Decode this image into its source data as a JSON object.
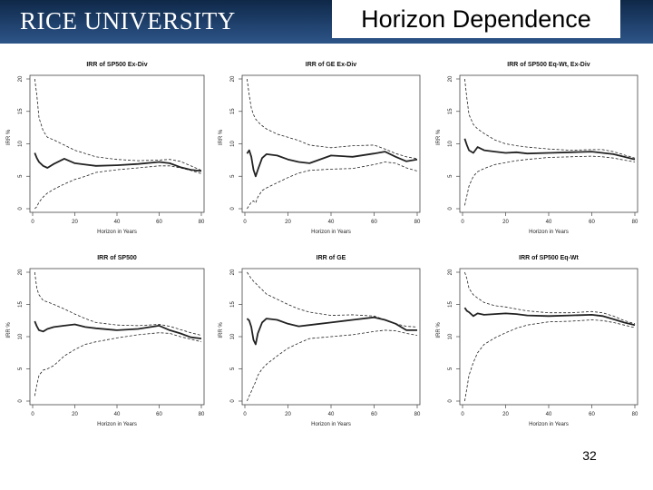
{
  "header": {
    "logo_text": "RICE UNIVERSITY",
    "title": "Horizon Dependence",
    "brand_color": "#1c3c66"
  },
  "footer": {
    "page_number": "32"
  },
  "chart_data": [
    {
      "type": "line",
      "title": "IRR of SP500 Ex-Div",
      "xlabel": "Horizon in Years",
      "ylabel": "IRR %",
      "xlim": [
        0,
        80
      ],
      "ylim": [
        0,
        20
      ],
      "xticks": [
        "0",
        "20",
        "40",
        "60",
        "80"
      ],
      "yticks": [
        "0",
        "5",
        "10",
        "15",
        "20"
      ],
      "x": [
        1,
        2,
        3,
        5,
        7,
        10,
        15,
        20,
        25,
        30,
        40,
        50,
        60,
        65,
        70,
        75,
        80
      ],
      "series": [
        {
          "name": "IRR",
          "style": "solid",
          "values": [
            8.6,
            7.8,
            7.2,
            6.6,
            6.3,
            6.9,
            7.7,
            7.0,
            6.8,
            6.6,
            6.7,
            6.9,
            7.2,
            7.0,
            6.4,
            6.0,
            5.8
          ]
        },
        {
          "name": "Upper bound",
          "style": "dashed",
          "values": [
            20,
            17.5,
            14,
            12,
            11,
            10.6,
            9.8,
            9.0,
            8.5,
            8.0,
            7.6,
            7.4,
            7.5,
            7.6,
            7.3,
            6.6,
            5.9
          ]
        },
        {
          "name": "Lower bound",
          "style": "dashed",
          "values": [
            0,
            0.3,
            1.0,
            1.8,
            2.4,
            3.0,
            3.8,
            4.5,
            5.0,
            5.6,
            6.0,
            6.3,
            6.6,
            6.6,
            6.3,
            5.9,
            5.4
          ]
        }
      ]
    },
    {
      "type": "line",
      "title": "IRR of GE Ex-Div",
      "xlabel": "Horizon in Years",
      "ylabel": "IRR %",
      "xlim": [
        0,
        80
      ],
      "ylim": [
        0,
        20
      ],
      "xticks": [
        "0",
        "20",
        "40",
        "60",
        "80"
      ],
      "yticks": [
        "0",
        "5",
        "10",
        "15",
        "20"
      ],
      "x": [
        1,
        2,
        3,
        4,
        5,
        6,
        8,
        10,
        15,
        20,
        25,
        30,
        40,
        50,
        60,
        65,
        70,
        75,
        80
      ],
      "series": [
        {
          "name": "IRR",
          "style": "solid",
          "values": [
            8.5,
            9.0,
            8.0,
            6.0,
            5.0,
            6.0,
            7.8,
            8.4,
            8.2,
            7.6,
            7.2,
            7.0,
            8.2,
            8.0,
            8.5,
            8.8,
            8.0,
            7.3,
            7.6
          ]
        },
        {
          "name": "Upper bound",
          "style": "dashed",
          "values": [
            20,
            17.5,
            15.5,
            14.5,
            13.8,
            13.4,
            12.8,
            12.3,
            11.5,
            11.0,
            10.5,
            9.8,
            9.4,
            9.7,
            9.8,
            9.2,
            8.5,
            8.0,
            7.7
          ]
        },
        {
          "name": "Lower bound",
          "style": "dashed",
          "values": [
            0,
            0.5,
            1.0,
            1.2,
            0.9,
            1.8,
            2.8,
            3.2,
            4.0,
            4.8,
            5.5,
            5.9,
            6.1,
            6.2,
            6.8,
            7.2,
            7.0,
            6.3,
            5.8
          ]
        }
      ]
    },
    {
      "type": "line",
      "title": "IRR of SP500 Eq-Wt, Ex-Div",
      "xlabel": "Horizon in Years",
      "ylabel": "IRR %",
      "xlim": [
        0,
        80
      ],
      "ylim": [
        0,
        20
      ],
      "xticks": [
        "0",
        "20",
        "40",
        "60",
        "80"
      ],
      "yticks": [
        "0",
        "5",
        "10",
        "15",
        "20"
      ],
      "x": [
        1,
        2,
        3,
        5,
        7,
        10,
        15,
        20,
        25,
        30,
        40,
        50,
        60,
        65,
        70,
        75,
        80
      ],
      "series": [
        {
          "name": "IRR",
          "style": "solid",
          "values": [
            10.8,
            9.8,
            9.0,
            8.6,
            9.5,
            9.0,
            8.8,
            8.6,
            8.7,
            8.5,
            8.6,
            8.7,
            8.8,
            8.6,
            8.4,
            8.0,
            7.6
          ]
        },
        {
          "name": "Upper bound",
          "style": "dashed",
          "values": [
            20,
            17,
            14.5,
            13,
            12.3,
            11.6,
            10.6,
            10.0,
            9.7,
            9.5,
            9.2,
            9.0,
            9.1,
            9.1,
            8.8,
            8.3,
            7.8
          ]
        },
        {
          "name": "Lower bound",
          "style": "dashed",
          "values": [
            0.5,
            2.0,
            3.5,
            5.0,
            5.7,
            6.2,
            6.8,
            7.1,
            7.4,
            7.6,
            7.9,
            8.0,
            8.1,
            8.0,
            7.8,
            7.5,
            7.2
          ]
        }
      ]
    },
    {
      "type": "line",
      "title": "IRR of SP500",
      "xlabel": "Horizon in Years",
      "ylabel": "IRR %",
      "xlim": [
        0,
        80
      ],
      "ylim": [
        0,
        20
      ],
      "xticks": [
        "0",
        "20",
        "40",
        "60",
        "80"
      ],
      "yticks": [
        "0",
        "5",
        "10",
        "15",
        "20"
      ],
      "x": [
        1,
        2,
        3,
        5,
        7,
        10,
        15,
        20,
        25,
        30,
        40,
        50,
        60,
        65,
        70,
        75,
        80
      ],
      "series": [
        {
          "name": "IRR",
          "style": "solid",
          "values": [
            12.4,
            11.6,
            11.0,
            10.8,
            11.2,
            11.5,
            11.7,
            11.9,
            11.5,
            11.3,
            11.0,
            11.2,
            11.7,
            11.0,
            10.5,
            9.9,
            9.7
          ]
        },
        {
          "name": "Upper bound",
          "style": "dashed",
          "values": [
            20,
            17.5,
            16.5,
            15.6,
            15.4,
            15.0,
            14.3,
            13.5,
            12.8,
            12.2,
            11.8,
            11.7,
            11.9,
            11.6,
            11.1,
            10.6,
            10.2
          ]
        },
        {
          "name": "Lower bound",
          "style": "dashed",
          "values": [
            0.8,
            2.5,
            4.0,
            4.8,
            5.0,
            5.5,
            7.0,
            8.0,
            8.8,
            9.2,
            9.8,
            10.3,
            10.6,
            10.5,
            10.0,
            9.6,
            9.2
          ]
        }
      ]
    },
    {
      "type": "line",
      "title": "IRR of GE",
      "xlabel": "Horizon in Years",
      "ylabel": "IRR %",
      "xlim": [
        0,
        80
      ],
      "ylim": [
        0,
        20
      ],
      "xticks": [
        "0",
        "20",
        "40",
        "60",
        "80"
      ],
      "yticks": [
        "0",
        "5",
        "10",
        "15",
        "20"
      ],
      "x": [
        1,
        2,
        3,
        4,
        5,
        6,
        8,
        10,
        15,
        20,
        25,
        30,
        40,
        50,
        60,
        65,
        70,
        75,
        80
      ],
      "series": [
        {
          "name": "IRR",
          "style": "solid",
          "values": [
            12.8,
            12.5,
            11.5,
            9.5,
            8.8,
            10.5,
            12.2,
            12.8,
            12.6,
            12.0,
            11.6,
            11.8,
            12.2,
            12.6,
            13.0,
            12.6,
            12.0,
            11.0,
            11.0
          ]
        },
        {
          "name": "Upper bound",
          "style": "dashed",
          "values": [
            20,
            19.5,
            19.0,
            18.6,
            18.3,
            17.9,
            17.3,
            16.6,
            15.8,
            15.0,
            14.3,
            13.8,
            13.3,
            13.4,
            13.2,
            12.6,
            12.0,
            11.6,
            11.5
          ]
        },
        {
          "name": "Lower bound",
          "style": "dashed",
          "values": [
            0,
            0.8,
            1.5,
            2.3,
            3.0,
            4.0,
            5.0,
            5.7,
            7.0,
            8.2,
            9.0,
            9.7,
            10.0,
            10.3,
            10.8,
            11.0,
            10.9,
            10.5,
            10.2
          ]
        }
      ]
    },
    {
      "type": "line",
      "title": "IRR of SP500 Eq-Wt",
      "xlabel": "Horizon in Years",
      "ylabel": "IRR %",
      "xlim": [
        0,
        80
      ],
      "ylim": [
        0,
        20
      ],
      "xticks": [
        "0",
        "20",
        "40",
        "60",
        "80"
      ],
      "yticks": [
        "0",
        "5",
        "10",
        "15",
        "20"
      ],
      "x": [
        1,
        2,
        3,
        5,
        7,
        10,
        15,
        20,
        25,
        30,
        40,
        50,
        60,
        65,
        70,
        75,
        80
      ],
      "series": [
        {
          "name": "IRR",
          "style": "solid",
          "values": [
            14.5,
            14.0,
            13.8,
            13.2,
            13.6,
            13.4,
            13.5,
            13.6,
            13.5,
            13.3,
            13.2,
            13.3,
            13.4,
            13.2,
            12.7,
            12.2,
            11.8
          ]
        },
        {
          "name": "Upper bound",
          "style": "dashed",
          "values": [
            20,
            19.0,
            17.5,
            16.5,
            16.0,
            15.3,
            14.8,
            14.6,
            14.3,
            14.0,
            13.7,
            13.7,
            13.9,
            13.7,
            13.2,
            12.5,
            12.0
          ]
        },
        {
          "name": "Lower bound",
          "style": "dashed",
          "values": [
            0,
            2.0,
            4.0,
            6.0,
            7.5,
            8.8,
            9.8,
            10.6,
            11.3,
            11.8,
            12.3,
            12.4,
            12.6,
            12.5,
            12.2,
            11.8,
            11.4
          ]
        }
      ]
    }
  ]
}
